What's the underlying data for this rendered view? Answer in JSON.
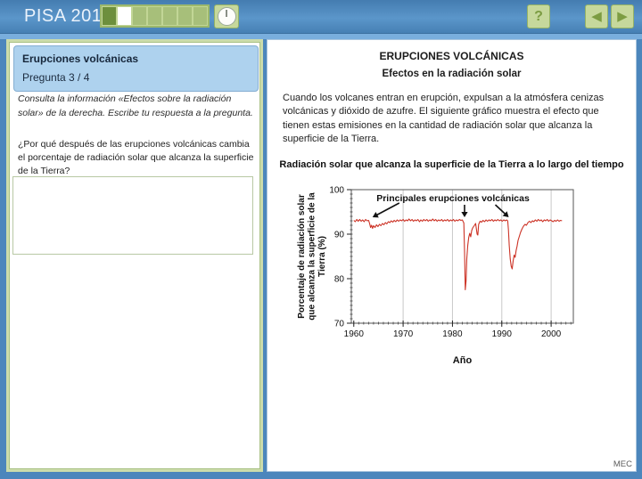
{
  "header": {
    "app_title": "PISA 2015",
    "progress_segments": [
      "done",
      "current",
      "todo",
      "todo",
      "todo",
      "todo",
      "todo"
    ],
    "help_button_label": "?",
    "back_icon": "◀",
    "forward_icon": "▶"
  },
  "left_panel": {
    "unit_title": "Erupciones volcánicas",
    "question_number": "Pregunta 3 / 4",
    "instruction": "Consulta la información «Efectos sobre la radiación solar» de la derecha. Escribe tu respuesta a la pregunta.",
    "question": "¿Por qué después de las erupciones volcánicas cambia el porcentaje de radiación solar que alcanza la superficie de la Tierra?",
    "answer_value": ""
  },
  "right_panel": {
    "title": "ERUPCIONES VOLCÁNICAS",
    "subtitle": "Efectos en la radiación solar",
    "paragraph": "Cuando los volcanes entran en erupción, expulsan a la atmósfera cenizas volcánicas y dióxido de azufre. El siguiente gráfico muestra el efecto que tienen estas emisiones en la cantidad de radiación solar que alcanza la superficie de la Tierra."
  },
  "footer_credit": "MEC",
  "colors": {
    "header_blue": "#4c86bc",
    "panel_border_green": "#ccdcab",
    "button_green": "#c6d89c",
    "button_glyph_green": "#7c9c42",
    "progress_done": "#6d8f3d",
    "progress_current": "#ffffff",
    "progress_todo": "#a7bf7a",
    "info_box_blue": "#aed2ee",
    "chart_line_red": "#cc3326",
    "gridline_gray": "#c9c9c9"
  },
  "chart_data": {
    "type": "line",
    "title": "Radiación solar que alcanza la superficie de la Tierra a lo largo del tiempo",
    "xlabel": "Año",
    "ylabel": "Porcentaje de radiación solar que alcanza la superficie de la Tierra (%)",
    "ylabel_lines": [
      "Porcentaje de radiación solar",
      "que alcanza la superficie de la",
      "Tierra (%)"
    ],
    "xlim": [
      1959.5,
      2004.5
    ],
    "ylim": [
      70,
      100
    ],
    "xticks": [
      1960,
      1970,
      1980,
      1990,
      2000
    ],
    "yticks": [
      70,
      80,
      90,
      100
    ],
    "grid": "vertical-only",
    "legend": "none",
    "annotation": {
      "text": "Principales erupciones volcánicas",
      "arrow_years": [
        1963.8,
        1982.45,
        1991.4
      ]
    },
    "series": [
      {
        "name": "Porcentaje de radiación solar que alcanza la superficie de la Tierra (%)",
        "points": [
          [
            1960.0,
            93.1
          ],
          [
            1960.3,
            92.8
          ],
          [
            1960.6,
            93.3
          ],
          [
            1960.9,
            92.9
          ],
          [
            1961.2,
            93.3
          ],
          [
            1961.5,
            92.9
          ],
          [
            1961.8,
            93.2
          ],
          [
            1962.1,
            92.8
          ],
          [
            1962.4,
            93.3
          ],
          [
            1962.7,
            93.0
          ],
          [
            1963.0,
            93.1
          ],
          [
            1963.2,
            92.4
          ],
          [
            1963.4,
            91.5
          ],
          [
            1963.6,
            92.0
          ],
          [
            1963.8,
            91.3
          ],
          [
            1964.0,
            91.9
          ],
          [
            1964.3,
            91.5
          ],
          [
            1964.6,
            92.1
          ],
          [
            1964.9,
            91.7
          ],
          [
            1965.2,
            92.2
          ],
          [
            1965.5,
            91.9
          ],
          [
            1965.8,
            92.4
          ],
          [
            1966.1,
            92.1
          ],
          [
            1966.4,
            92.6
          ],
          [
            1966.7,
            92.3
          ],
          [
            1967.0,
            92.8
          ],
          [
            1967.3,
            92.6
          ],
          [
            1967.6,
            93.0
          ],
          [
            1967.9,
            92.7
          ],
          [
            1968.2,
            93.1
          ],
          [
            1968.5,
            92.8
          ],
          [
            1968.8,
            93.2
          ],
          [
            1969.1,
            92.9
          ],
          [
            1969.4,
            93.2
          ],
          [
            1969.7,
            93.0
          ],
          [
            1970.0,
            93.3
          ],
          [
            1970.3,
            92.9
          ],
          [
            1970.6,
            93.2
          ],
          [
            1970.9,
            93.0
          ],
          [
            1971.2,
            93.4
          ],
          [
            1971.5,
            93.0
          ],
          [
            1971.8,
            93.3
          ],
          [
            1972.1,
            92.9
          ],
          [
            1972.4,
            93.2
          ],
          [
            1972.7,
            93.0
          ],
          [
            1973.0,
            93.3
          ],
          [
            1973.3,
            92.8
          ],
          [
            1973.6,
            93.2
          ],
          [
            1973.9,
            92.9
          ],
          [
            1974.2,
            93.3
          ],
          [
            1974.5,
            93.0
          ],
          [
            1974.8,
            93.3
          ],
          [
            1975.1,
            92.9
          ],
          [
            1975.4,
            93.2
          ],
          [
            1975.7,
            93.0
          ],
          [
            1976.0,
            93.4
          ],
          [
            1976.3,
            93.0
          ],
          [
            1976.6,
            93.3
          ],
          [
            1976.9,
            92.9
          ],
          [
            1977.2,
            93.2
          ],
          [
            1977.5,
            93.0
          ],
          [
            1977.8,
            93.3
          ],
          [
            1978.1,
            92.9
          ],
          [
            1978.4,
            93.2
          ],
          [
            1978.7,
            93.0
          ],
          [
            1979.0,
            93.3
          ],
          [
            1979.3,
            92.9
          ],
          [
            1979.6,
            93.2
          ],
          [
            1979.9,
            93.0
          ],
          [
            1980.2,
            93.3
          ],
          [
            1980.5,
            92.9
          ],
          [
            1980.8,
            93.2
          ],
          [
            1981.1,
            93.0
          ],
          [
            1981.4,
            93.3
          ],
          [
            1981.7,
            93.1
          ],
          [
            1982.0,
            93.2
          ],
          [
            1982.3,
            92.5
          ],
          [
            1982.45,
            86.0
          ],
          [
            1982.6,
            77.5
          ],
          [
            1982.75,
            79.5
          ],
          [
            1982.9,
            84.5
          ],
          [
            1983.1,
            87.5
          ],
          [
            1983.3,
            89.3
          ],
          [
            1983.5,
            90.2
          ],
          [
            1983.7,
            89.4
          ],
          [
            1983.9,
            90.8
          ],
          [
            1984.1,
            91.4
          ],
          [
            1984.4,
            91.9
          ],
          [
            1984.7,
            92.4
          ],
          [
            1985.0,
            90.0
          ],
          [
            1985.15,
            89.8
          ],
          [
            1985.3,
            92.2
          ],
          [
            1985.6,
            92.9
          ],
          [
            1985.9,
            92.7
          ],
          [
            1986.2,
            93.1
          ],
          [
            1986.5,
            92.8
          ],
          [
            1986.8,
            93.2
          ],
          [
            1987.1,
            92.9
          ],
          [
            1987.4,
            93.2
          ],
          [
            1987.7,
            93.0
          ],
          [
            1988.0,
            93.3
          ],
          [
            1988.3,
            92.9
          ],
          [
            1988.6,
            93.2
          ],
          [
            1988.9,
            93.0
          ],
          [
            1989.2,
            93.3
          ],
          [
            1989.5,
            93.0
          ],
          [
            1989.8,
            93.2
          ],
          [
            1990.1,
            92.9
          ],
          [
            1990.4,
            93.2
          ],
          [
            1990.7,
            93.0
          ],
          [
            1991.0,
            93.2
          ],
          [
            1991.2,
            93.0
          ],
          [
            1991.35,
            91.0
          ],
          [
            1991.5,
            87.5
          ],
          [
            1991.7,
            84.5
          ],
          [
            1991.9,
            82.8
          ],
          [
            1992.1,
            82.2
          ],
          [
            1992.3,
            84.0
          ],
          [
            1992.5,
            85.3
          ],
          [
            1992.7,
            84.8
          ],
          [
            1992.9,
            86.3
          ],
          [
            1993.1,
            87.3
          ],
          [
            1993.3,
            88.6
          ],
          [
            1993.5,
            89.3
          ],
          [
            1993.8,
            90.4
          ],
          [
            1994.1,
            91.2
          ],
          [
            1994.4,
            91.8
          ],
          [
            1994.7,
            92.2
          ],
          [
            1995.0,
            92.0
          ],
          [
            1995.3,
            92.6
          ],
          [
            1995.6,
            92.9
          ],
          [
            1995.9,
            92.6
          ],
          [
            1996.2,
            93.0
          ],
          [
            1996.5,
            92.8
          ],
          [
            1996.8,
            93.2
          ],
          [
            1997.1,
            92.9
          ],
          [
            1997.4,
            93.3
          ],
          [
            1997.7,
            93.0
          ],
          [
            1998.0,
            93.2
          ],
          [
            1998.3,
            92.8
          ],
          [
            1998.6,
            93.2
          ],
          [
            1998.9,
            93.0
          ],
          [
            1999.2,
            93.3
          ],
          [
            1999.5,
            92.9
          ],
          [
            1999.8,
            93.2
          ],
          [
            2000.1,
            93.0
          ],
          [
            2000.4,
            92.8
          ],
          [
            2000.7,
            93.1
          ],
          [
            2001.0,
            92.9
          ],
          [
            2001.3,
            93.2
          ],
          [
            2001.6,
            92.9
          ],
          [
            2001.9,
            93.1
          ],
          [
            2002.2,
            93.0
          ]
        ]
      }
    ]
  }
}
